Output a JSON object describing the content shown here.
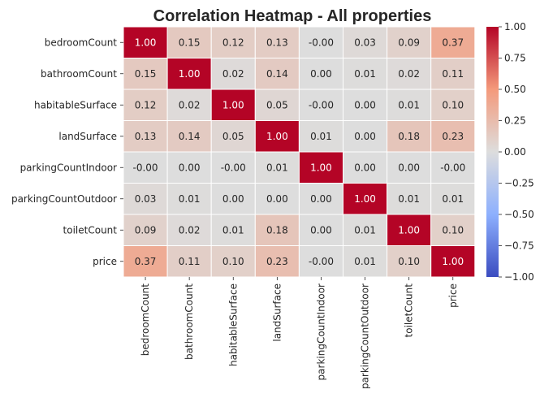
{
  "chart_data": {
    "type": "heatmap",
    "title": "Correlation Heatmap - All properties",
    "x_labels": [
      "bedroomCount",
      "bathroomCount",
      "habitableSurface",
      "landSurface",
      "parkingCountIndoor",
      "parkingCountOutdoor",
      "toiletCount",
      "price"
    ],
    "y_labels": [
      "bedroomCount",
      "bathroomCount",
      "habitableSurface",
      "landSurface",
      "parkingCountIndoor",
      "parkingCountOutdoor",
      "toiletCount",
      "price"
    ],
    "values": [
      [
        1.0,
        0.15,
        0.12,
        0.13,
        -0.001,
        0.03,
        0.09,
        0.37
      ],
      [
        0.15,
        1.0,
        0.02,
        0.14,
        0.0,
        0.01,
        0.02,
        0.11
      ],
      [
        0.12,
        0.02,
        1.0,
        0.05,
        -0.001,
        0.0,
        0.01,
        0.1
      ],
      [
        0.13,
        0.14,
        0.05,
        1.0,
        0.01,
        0.0,
        0.18,
        0.23
      ],
      [
        -0.001,
        0.0,
        -0.001,
        0.01,
        1.0,
        0.0,
        0.0,
        -0.001
      ],
      [
        0.03,
        0.01,
        0.0,
        0.0,
        0.0,
        1.0,
        0.01,
        0.01
      ],
      [
        0.09,
        0.02,
        0.01,
        0.18,
        0.0,
        0.01,
        1.0,
        0.1
      ],
      [
        0.37,
        0.11,
        0.1,
        0.23,
        -0.001,
        0.01,
        0.1,
        1.0
      ]
    ],
    "annotations": [
      [
        "1.00",
        "0.15",
        "0.12",
        "0.13",
        "-0.00",
        "0.03",
        "0.09",
        "0.37"
      ],
      [
        "0.15",
        "1.00",
        "0.02",
        "0.14",
        "0.00",
        "0.01",
        "0.02",
        "0.11"
      ],
      [
        "0.12",
        "0.02",
        "1.00",
        "0.05",
        "-0.00",
        "0.00",
        "0.01",
        "0.10"
      ],
      [
        "0.13",
        "0.14",
        "0.05",
        "1.00",
        "0.01",
        "0.00",
        "0.18",
        "0.23"
      ],
      [
        "-0.00",
        "0.00",
        "-0.00",
        "0.01",
        "1.00",
        "0.00",
        "0.00",
        "-0.00"
      ],
      [
        "0.03",
        "0.01",
        "0.00",
        "0.00",
        "0.00",
        "1.00",
        "0.01",
        "0.01"
      ],
      [
        "0.09",
        "0.02",
        "0.01",
        "0.18",
        "0.00",
        "0.01",
        "1.00",
        "0.10"
      ],
      [
        "0.37",
        "0.11",
        "0.10",
        "0.23",
        "-0.00",
        "0.01",
        "0.10",
        "1.00"
      ]
    ],
    "colormap": "coolwarm",
    "vmin": -1.0,
    "vmax": 1.0,
    "colorbar_ticks": [
      "1.00",
      "0.75",
      "0.50",
      "0.25",
      "0.00",
      "−0.25",
      "−0.50",
      "−0.75",
      "−1.00"
    ],
    "colorbar_tick_values": [
      1.0,
      0.75,
      0.5,
      0.25,
      0.0,
      -0.25,
      -0.5,
      -0.75,
      -1.0
    ],
    "colors": {
      "low": "#3b4cc0",
      "mid": "#dddddd",
      "high": "#b40426",
      "cell_border": "#ffffff",
      "text_dark": "#262626",
      "text_light": "#ffffff"
    }
  }
}
